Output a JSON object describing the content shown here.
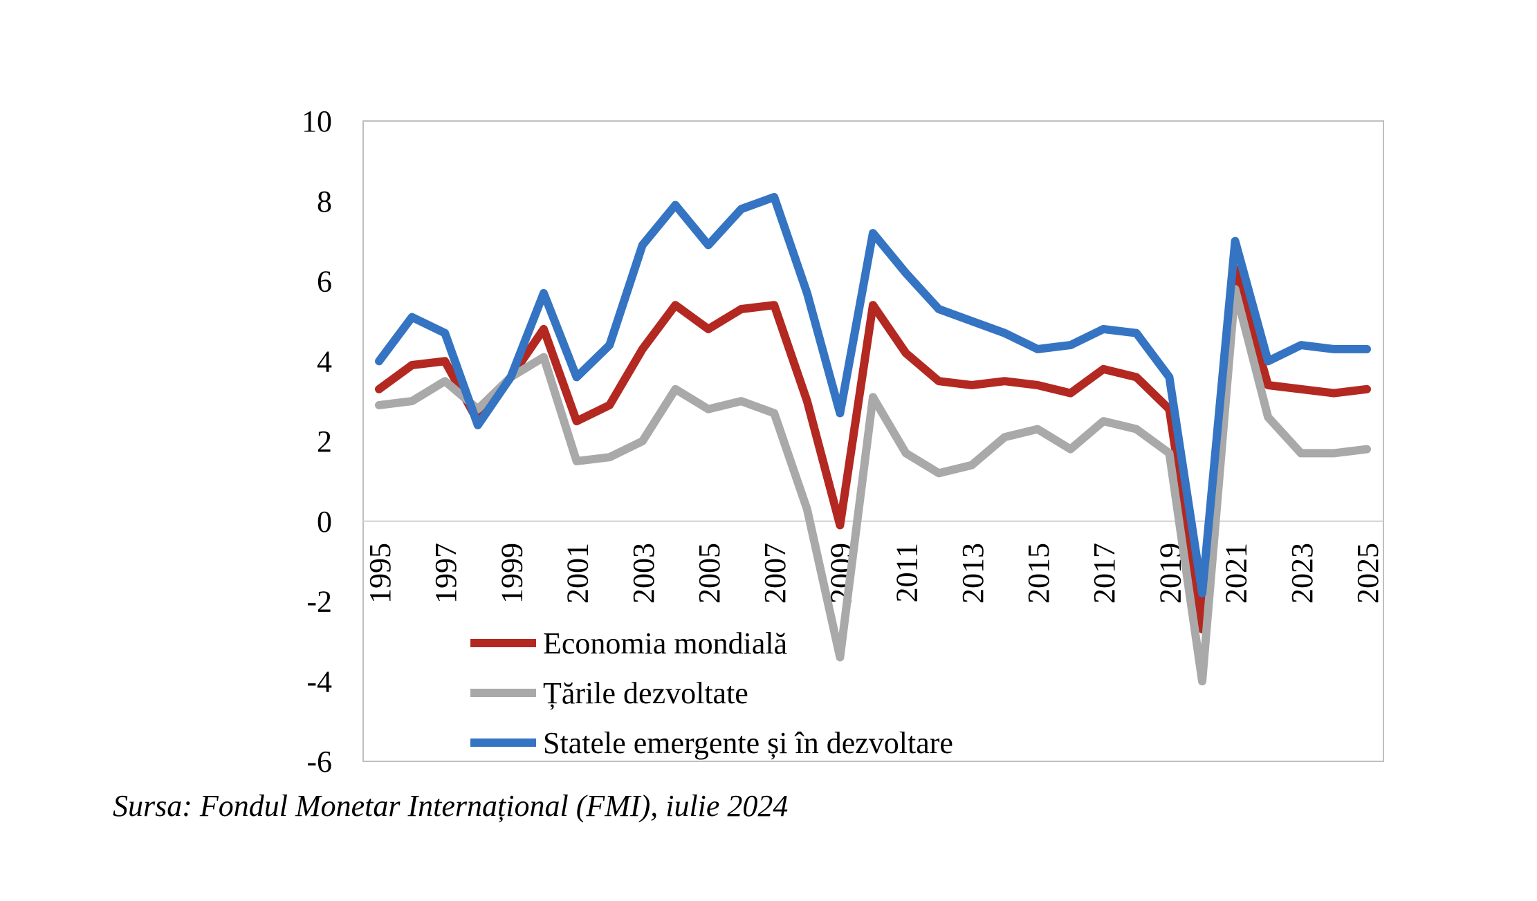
{
  "chart_data": {
    "type": "line",
    "title": "",
    "xlabel": "",
    "ylabel": "",
    "x": [
      1995,
      1996,
      1997,
      1998,
      1999,
      2000,
      2001,
      2002,
      2003,
      2004,
      2005,
      2006,
      2007,
      2008,
      2009,
      2010,
      2011,
      2012,
      2013,
      2014,
      2015,
      2016,
      2017,
      2018,
      2019,
      2020,
      2021,
      2022,
      2023,
      2024,
      2025
    ],
    "x_tick_labels": [
      "1995",
      "1997",
      "1999",
      "2001",
      "2003",
      "2005",
      "2007",
      "2009",
      "2011",
      "2013",
      "2015",
      "2017",
      "2019",
      "2021",
      "2023",
      "2025"
    ],
    "y_tick_labels": [
      "10",
      "8",
      "6",
      "4",
      "2",
      "0",
      "-2",
      "-4",
      "-6"
    ],
    "ylim": [
      -6,
      10
    ],
    "grid": false,
    "legend_position": "lower-left",
    "series": [
      {
        "name": "Economia mondială",
        "color": "#b32820",
        "values": [
          3.3,
          3.9,
          4.0,
          2.5,
          3.6,
          4.8,
          2.5,
          2.9,
          4.3,
          5.4,
          4.8,
          5.3,
          5.4,
          3.0,
          -0.1,
          5.4,
          4.2,
          3.5,
          3.4,
          3.5,
          3.4,
          3.2,
          3.8,
          3.6,
          2.8,
          -2.7,
          6.3,
          3.4,
          3.3,
          3.2,
          3.3
        ]
      },
      {
        "name": "Țările dezvoltate",
        "color": "#a9a9a9",
        "values": [
          2.9,
          3.0,
          3.5,
          2.8,
          3.6,
          4.1,
          1.5,
          1.6,
          2.0,
          3.3,
          2.8,
          3.0,
          2.7,
          0.3,
          -3.4,
          3.1,
          1.7,
          1.2,
          1.4,
          2.1,
          2.3,
          1.8,
          2.5,
          2.3,
          1.7,
          -4.0,
          5.8,
          2.6,
          1.7,
          1.7,
          1.8
        ]
      },
      {
        "name": "Statele emergente și în dezvoltare",
        "color": "#3474c2",
        "values": [
          4.0,
          5.1,
          4.7,
          2.4,
          3.6,
          5.7,
          3.6,
          4.4,
          6.9,
          7.9,
          6.9,
          7.8,
          8.1,
          5.7,
          2.7,
          7.2,
          6.2,
          5.3,
          5.0,
          4.7,
          4.3,
          4.4,
          4.8,
          4.7,
          3.6,
          -1.8,
          7.0,
          4.0,
          4.4,
          4.3,
          4.3
        ]
      }
    ]
  },
  "source_note": "Sursa: Fondul Monetar Internațional (FMI), iulie 2024"
}
